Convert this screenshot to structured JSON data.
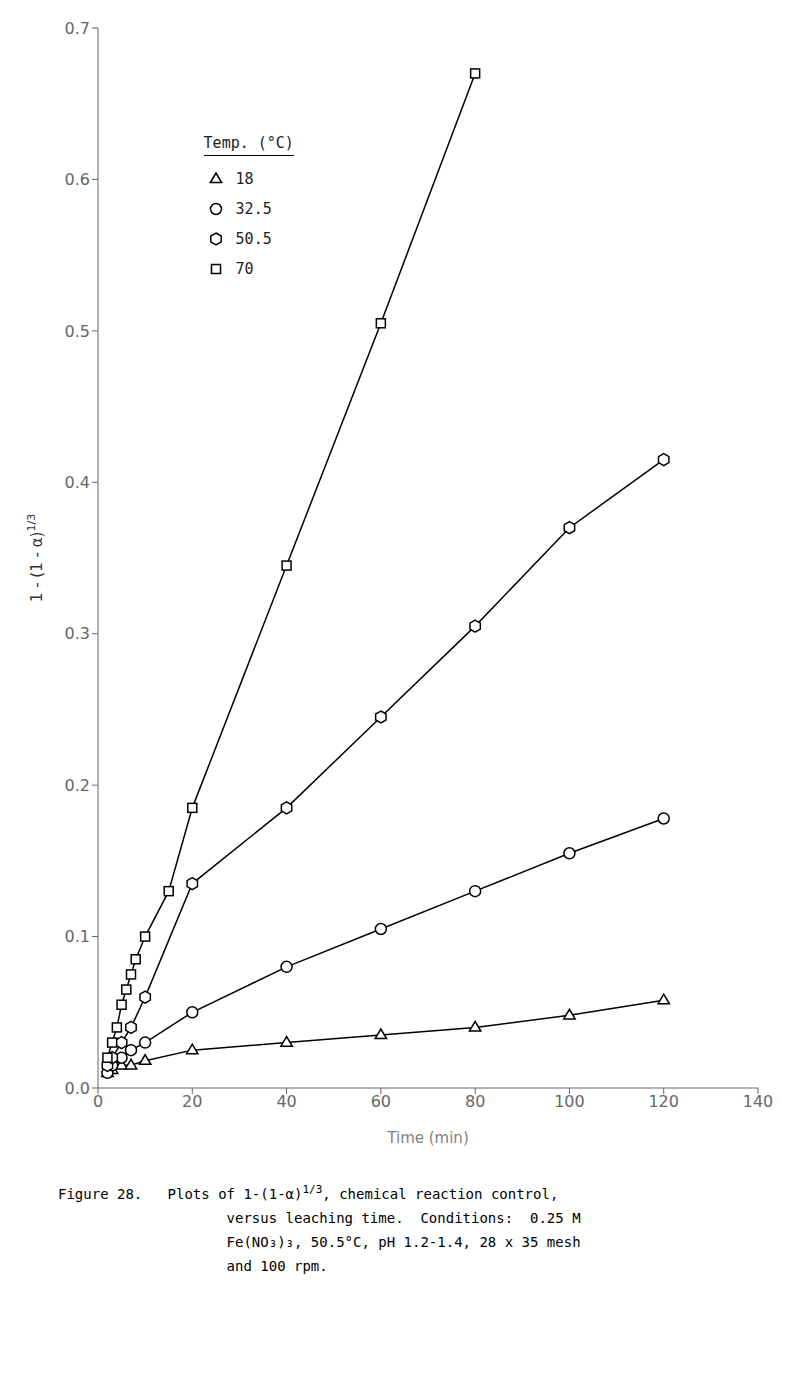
{
  "chart_data": {
    "type": "line",
    "xlabel": "Time (min)",
    "ylabel": [
      "1 - (1 - α)",
      "1/3"
    ],
    "xlim": [
      0,
      140
    ],
    "ylim": [
      0,
      0.7
    ],
    "xticks": [
      0,
      20,
      40,
      60,
      80,
      100,
      120,
      140
    ],
    "yticks": [
      {
        "value": 0,
        "label": "0.0"
      },
      0.1,
      0.2,
      0.3,
      0.4,
      0.5,
      0.6,
      0.7
    ],
    "grid": false,
    "legend": "upper left",
    "legend_title": "Temp. (°C)",
    "color": "#000000",
    "series": [
      {
        "name": "18",
        "marker": "triangle",
        "x": [
          2,
          3,
          5,
          7,
          10,
          20,
          40,
          60,
          80,
          100,
          120
        ],
        "values": [
          0.01,
          0.012,
          0.015,
          0.015,
          0.018,
          0.025,
          0.03,
          0.035,
          0.04,
          0.048,
          0.058
        ]
      },
      {
        "name": "32.5",
        "marker": "circle",
        "x": [
          2,
          3,
          5,
          7,
          10,
          20,
          40,
          60,
          80,
          100,
          120
        ],
        "values": [
          0.01,
          0.015,
          0.02,
          0.025,
          0.03,
          0.05,
          0.08,
          0.105,
          0.13,
          0.155,
          0.178
        ]
      },
      {
        "name": "50.5",
        "marker": "hexagon",
        "x": [
          2,
          3,
          5,
          7,
          10,
          20,
          40,
          60,
          80,
          100,
          120
        ],
        "values": [
          0.015,
          0.02,
          0.03,
          0.04,
          0.06,
          0.135,
          0.185,
          0.245,
          0.305,
          0.37,
          0.415
        ]
      },
      {
        "name": "70",
        "marker": "square",
        "x": [
          2,
          3,
          4,
          5,
          6,
          7,
          8,
          10,
          15,
          20,
          40,
          60,
          80
        ],
        "values": [
          0.02,
          0.03,
          0.04,
          0.055,
          0.065,
          0.075,
          0.085,
          0.1,
          0.13,
          0.185,
          0.345,
          0.505,
          0.67
        ]
      }
    ],
    "caption": [
      [
        "Figure 28.   Plots of 1-(1-α)",
        "1/3",
        ", chemical reaction control,"
      ],
      [
        "versus leaching time.  Conditions:  0.25 M"
      ],
      [
        "Fe(NO₃)₃, 50.5°C, pH 1.2-1.4, 28 x 35 mesh"
      ],
      [
        "and 100 rpm."
      ]
    ]
  }
}
